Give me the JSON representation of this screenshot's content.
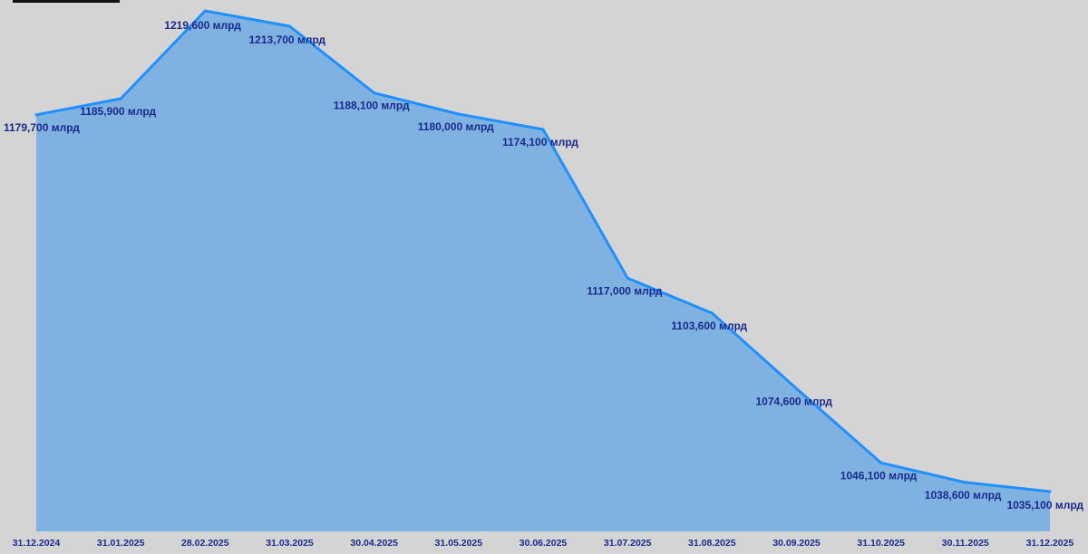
{
  "chart_data": {
    "type": "area",
    "title": "",
    "xlabel": "",
    "ylabel": "",
    "unit": "млрд",
    "x": [
      "31.12.2024",
      "31.01.2025",
      "28.02.2025",
      "31.03.2025",
      "30.04.2025",
      "31.05.2025",
      "30.06.2025",
      "31.07.2025",
      "31.08.2025",
      "30.09.2025",
      "31.10.2025",
      "30.11.2025",
      "31.12.2025"
    ],
    "values": [
      1179.7,
      1185.9,
      1219.6,
      1213.7,
      1188.1,
      1180.0,
      1174.1,
      1117.0,
      1103.6,
      1074.6,
      1046.1,
      1038.6,
      1035.1
    ],
    "data_labels": [
      "1179,700 млрд",
      "1185,900 млрд",
      "1219,600 млрд",
      "1213,700 млрд",
      "1188,100 млрд",
      "1180,000 млрд",
      "1174,100 млрд",
      "1117,000 млрд",
      "1103,600 млрд",
      "1074,600 млрд",
      "1046,100 млрд",
      "1038,600 млрд",
      "1035,100 млрд"
    ],
    "grid": false,
    "legend": "none",
    "colors": {
      "background": "#d4d4d4",
      "fill": "#7fb2e0",
      "line": "#1e90ff",
      "label": "#1a2a8c",
      "tick": "#1a2a8c"
    }
  }
}
